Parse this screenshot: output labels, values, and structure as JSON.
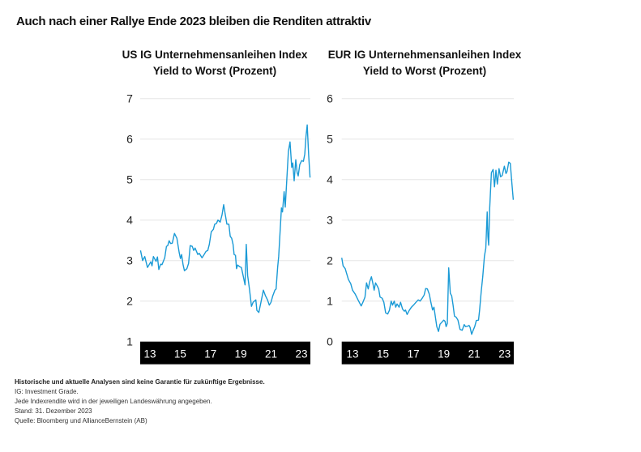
{
  "title": "Auch nach einer Rallye Ende 2023 bleiben die Renditen attraktiv",
  "line_color": "#1a9ad6",
  "chart_data": [
    {
      "type": "line",
      "title": "US IG Unternehmensanleihen Index",
      "subtitle": "Yield to Worst (Prozent)",
      "ylim": [
        1,
        7
      ],
      "yticks": [
        "1",
        "2",
        "3",
        "4",
        "5",
        "6",
        "7"
      ],
      "xlim": [
        2012.36,
        2023.59
      ],
      "xticks": [
        {
          "value": 2013,
          "label": "13"
        },
        {
          "value": 2015,
          "label": "15"
        },
        {
          "value": 2017,
          "label": "17"
        },
        {
          "value": 2019,
          "label": "19"
        },
        {
          "value": 2021,
          "label": "21"
        },
        {
          "value": 2023,
          "label": "23"
        }
      ],
      "grid": true,
      "series": [
        {
          "x": [
            2012.38,
            2012.52,
            2012.66,
            2012.84,
            2013.06,
            2013.14,
            2013.23,
            2013.41,
            2013.5,
            2013.59,
            2013.71,
            2013.8,
            2013.98,
            2014.09,
            2014.18,
            2014.27,
            2014.37,
            2014.48,
            2014.62,
            2014.78,
            2014.93,
            2015.02,
            2015.09,
            2015.19,
            2015.28,
            2015.44,
            2015.55,
            2015.66,
            2015.8,
            2015.89,
            2015.98,
            2016.16,
            2016.26,
            2016.44,
            2016.58,
            2016.71,
            2016.82,
            2016.92,
            2017.05,
            2017.19,
            2017.28,
            2017.4,
            2017.49,
            2017.64,
            2017.76,
            2017.87,
            2017.96,
            2018.08,
            2018.21,
            2018.3,
            2018.4,
            2018.49,
            2018.56,
            2018.65,
            2018.72,
            2018.79,
            2018.92,
            2019.04,
            2019.15,
            2019.28,
            2019.36,
            2019.45,
            2019.58,
            2019.7,
            2019.81,
            2019.99,
            2020.06,
            2020.19,
            2020.33,
            2020.49,
            2020.63,
            2020.76,
            2020.88,
            2020.99,
            2021.11,
            2021.25,
            2021.33,
            2021.43,
            2021.5,
            2021.59,
            2021.68,
            2021.75,
            2021.86,
            2021.93,
            2022.04,
            2022.14,
            2022.25,
            2022.36,
            2022.43,
            2022.52,
            2022.63,
            2022.72,
            2022.79,
            2022.89,
            2023.02,
            2023.13,
            2023.22,
            2023.3,
            2023.38,
            2023.48,
            2023.57
          ],
          "y": [
            3.25,
            3.0,
            3.1,
            2.83,
            2.97,
            2.87,
            3.1,
            2.98,
            3.09,
            2.78,
            2.91,
            2.9,
            3.07,
            3.35,
            3.37,
            3.49,
            3.42,
            3.43,
            3.67,
            3.55,
            3.2,
            3.05,
            3.15,
            2.9,
            2.75,
            2.8,
            2.93,
            3.37,
            3.35,
            3.25,
            3.31,
            3.15,
            3.18,
            3.07,
            3.15,
            3.23,
            3.25,
            3.4,
            3.71,
            3.77,
            3.9,
            3.92,
            4.0,
            3.95,
            4.13,
            4.38,
            4.17,
            3.9,
            3.9,
            3.6,
            3.55,
            3.4,
            3.15,
            3.13,
            2.8,
            2.89,
            2.85,
            2.83,
            2.63,
            2.4,
            3.4,
            2.63,
            2.27,
            1.87,
            1.97,
            2.03,
            1.77,
            1.72,
            1.97,
            2.27,
            2.13,
            2.03,
            1.9,
            1.97,
            2.13,
            2.27,
            2.3,
            2.83,
            3.1,
            3.7,
            4.3,
            4.2,
            4.7,
            4.32,
            5.03,
            5.7,
            5.93,
            5.3,
            5.41,
            4.97,
            5.49,
            5.17,
            5.09,
            5.37,
            5.47,
            5.45,
            5.63,
            6.07,
            6.35,
            5.6,
            5.05
          ]
        }
      ]
    },
    {
      "type": "line",
      "title": "EUR IG Unternehmensanleihen Index",
      "subtitle": "Yield to Worst (Prozent)",
      "ylim": [
        0,
        6
      ],
      "yticks": [
        "0",
        "1",
        "2",
        "3",
        "4",
        "5",
        "6"
      ],
      "xlim": [
        2012.29,
        2023.6
      ],
      "xticks": [
        {
          "value": 2013,
          "label": "13"
        },
        {
          "value": 2015,
          "label": "15"
        },
        {
          "value": 2017,
          "label": "17"
        },
        {
          "value": 2019,
          "label": "19"
        },
        {
          "value": 2021,
          "label": "21"
        },
        {
          "value": 2023,
          "label": "23"
        }
      ],
      "grid": true,
      "series": [
        {
          "x": [
            2012.29,
            2012.38,
            2012.52,
            2012.65,
            2012.73,
            2012.88,
            2013.0,
            2013.18,
            2013.36,
            2013.57,
            2013.68,
            2013.82,
            2013.92,
            2014.03,
            2014.12,
            2014.24,
            2014.33,
            2014.42,
            2014.51,
            2014.63,
            2014.72,
            2014.81,
            2014.95,
            2015.06,
            2015.18,
            2015.31,
            2015.42,
            2015.54,
            2015.63,
            2015.74,
            2015.84,
            2015.93,
            2016.06,
            2016.16,
            2016.29,
            2016.41,
            2016.48,
            2016.59,
            2016.73,
            2016.87,
            2017.03,
            2017.17,
            2017.32,
            2017.44,
            2017.58,
            2017.71,
            2017.81,
            2017.92,
            2018.05,
            2018.15,
            2018.26,
            2018.35,
            2018.44,
            2018.54,
            2018.65,
            2018.75,
            2018.9,
            2018.99,
            2019.08,
            2019.15,
            2019.23,
            2019.32,
            2019.43,
            2019.52,
            2019.61,
            2019.7,
            2019.82,
            2019.93,
            2020.07,
            2020.21,
            2020.34,
            2020.43,
            2020.57,
            2020.66,
            2020.73,
            2020.83,
            2020.92,
            2021.03,
            2021.14,
            2021.28,
            2021.35,
            2021.46,
            2021.56,
            2021.67,
            2021.76,
            2021.85,
            2021.9,
            2021.95,
            2022.02,
            2022.13,
            2022.24,
            2022.33,
            2022.43,
            2022.52,
            2022.63,
            2022.73,
            2022.84,
            2022.98,
            2023.09,
            2023.16,
            2023.27,
            2023.37,
            2023.48,
            2023.57
          ],
          "y": [
            2.07,
            1.87,
            1.8,
            1.63,
            1.53,
            1.43,
            1.27,
            1.17,
            1.03,
            0.88,
            0.97,
            1.1,
            1.45,
            1.3,
            1.47,
            1.6,
            1.45,
            1.27,
            1.45,
            1.37,
            1.3,
            1.1,
            1.07,
            0.97,
            0.71,
            0.68,
            0.77,
            1.0,
            0.9,
            1.0,
            0.85,
            0.93,
            0.85,
            0.97,
            0.8,
            0.75,
            0.78,
            0.67,
            0.77,
            0.85,
            0.91,
            0.97,
            1.03,
            1.0,
            1.07,
            1.15,
            1.31,
            1.3,
            1.17,
            0.97,
            0.78,
            0.85,
            0.63,
            0.37,
            0.25,
            0.43,
            0.49,
            0.53,
            0.5,
            0.37,
            0.45,
            1.82,
            1.19,
            1.13,
            0.9,
            0.63,
            0.6,
            0.53,
            0.3,
            0.28,
            0.42,
            0.37,
            0.38,
            0.4,
            0.35,
            0.18,
            0.27,
            0.37,
            0.52,
            0.53,
            0.77,
            1.23,
            1.6,
            2.11,
            2.31,
            3.2,
            2.6,
            2.38,
            3.3,
            4.17,
            4.25,
            3.82,
            4.23,
            3.89,
            4.27,
            4.07,
            4.1,
            4.33,
            4.15,
            4.2,
            4.43,
            4.4,
            3.9,
            3.5
          ]
        }
      ]
    }
  ],
  "notes": {
    "disclaimer": "Historische und aktuelle Analysen sind keine Garantie für zukünftige Ergebnisse.",
    "lines": [
      "IG: Investment Grade.",
      "Jede Indexrendite wird in der jeweiligen Landeswährung angegeben.",
      "Stand: 31. Dezember 2023",
      "Quelle: Bloomberg und AllianceBernstein (AB)"
    ]
  }
}
